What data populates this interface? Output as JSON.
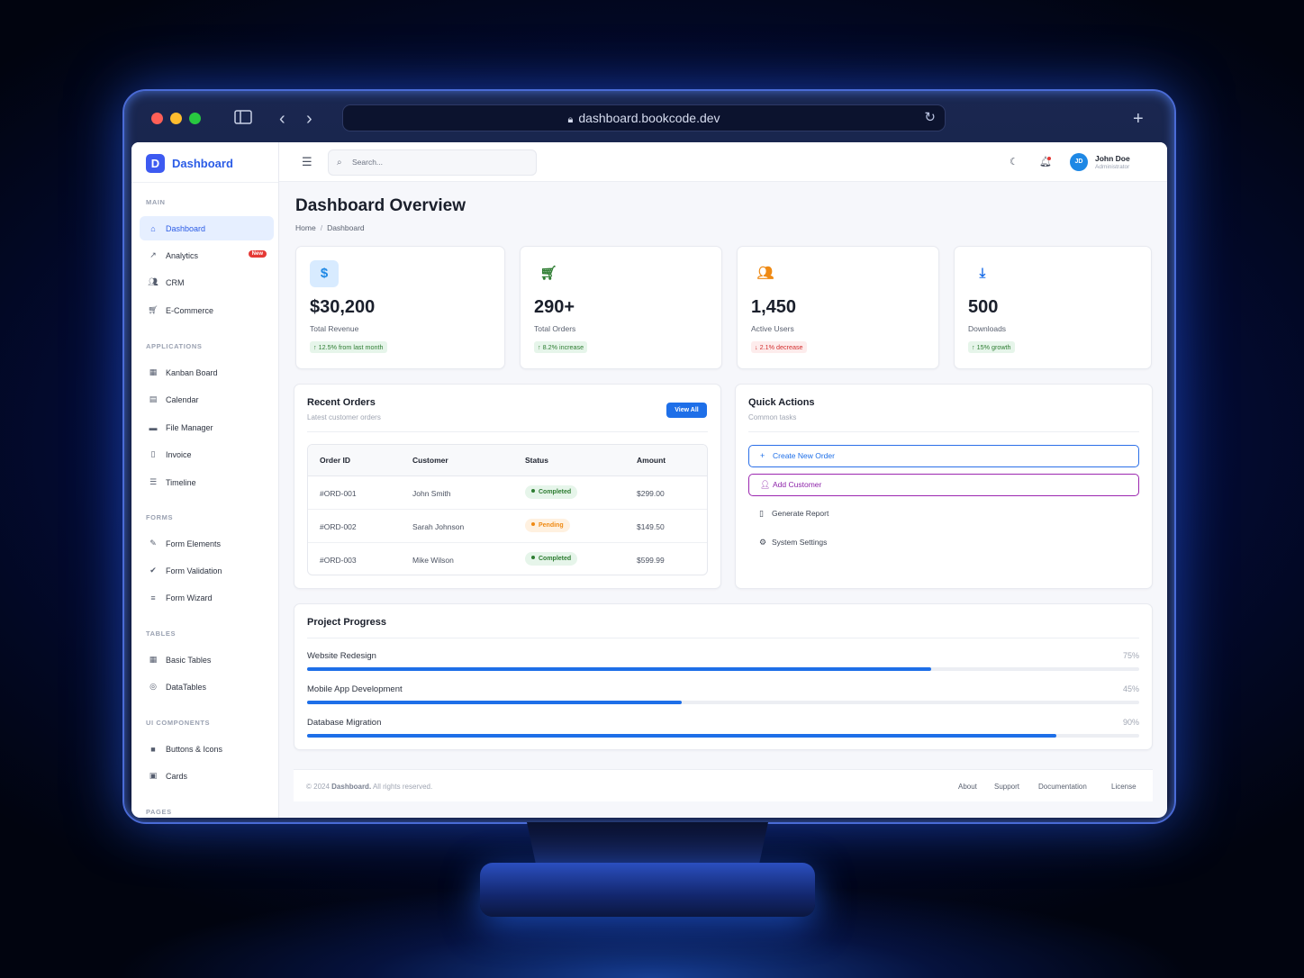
{
  "browser": {
    "url": "dashboard.bookcode.dev"
  },
  "brand": {
    "logo_letter": "D",
    "name": "Dashboard"
  },
  "sidebar": {
    "sections": {
      "main": "MAIN",
      "applications": "APPLICATIONS",
      "forms": "FORMS",
      "tables": "TABLES",
      "ui_components": "UI COMPONENTS",
      "pages": "PAGES"
    },
    "items": [
      {
        "label": "Dashboard",
        "icon": "home-icon",
        "active": true
      },
      {
        "label": "Analytics",
        "icon": "chart-line-icon",
        "badge": "New"
      },
      {
        "label": "CRM",
        "icon": "users-icon"
      },
      {
        "label": "E-Commerce",
        "icon": "cart-icon"
      },
      {
        "label": "Kanban Board",
        "icon": "kanban-icon"
      },
      {
        "label": "Calendar",
        "icon": "calendar-icon"
      },
      {
        "label": "File Manager",
        "icon": "folder-icon"
      },
      {
        "label": "Invoice",
        "icon": "file-icon"
      },
      {
        "label": "Timeline",
        "icon": "list-icon"
      },
      {
        "label": "Form Elements",
        "icon": "edit-icon"
      },
      {
        "label": "Form Validation",
        "icon": "check-circle-icon"
      },
      {
        "label": "Form Wizard",
        "icon": "list-ordered-icon"
      },
      {
        "label": "Basic Tables",
        "icon": "table-icon"
      },
      {
        "label": "DataTables",
        "icon": "database-icon"
      },
      {
        "label": "Buttons & Icons",
        "icon": "square-icon"
      },
      {
        "label": "Cards",
        "icon": "card-icon"
      }
    ]
  },
  "topbar": {
    "search_placeholder": "Search...",
    "user_initials": "JD",
    "user_name": "John Doe",
    "user_role": "Administrator"
  },
  "page": {
    "title": "Dashboard Overview",
    "breadcrumb": [
      "Home",
      "Dashboard"
    ]
  },
  "stats": [
    {
      "icon": "dollar-icon",
      "value": "$30,200",
      "label": "Total Revenue",
      "trend": "12.5% from last month",
      "direction": "up",
      "color": "#1e88e5"
    },
    {
      "icon": "cart-icon",
      "value": "290+",
      "label": "Total Orders",
      "trend": "8.2% increase",
      "direction": "up",
      "color": "#2e7d32"
    },
    {
      "icon": "users-icon",
      "value": "1,450",
      "label": "Active Users",
      "trend": "2.1% decrease",
      "direction": "down",
      "color": "#ef8a14"
    },
    {
      "icon": "download-icon",
      "value": "500",
      "label": "Downloads",
      "trend": "15% growth",
      "direction": "up",
      "color": "#1e6fe8"
    }
  ],
  "orders": {
    "title": "Recent Orders",
    "subtitle": "Latest customer orders",
    "view_all": "View All",
    "columns": [
      "Order ID",
      "Customer",
      "Status",
      "Amount"
    ],
    "rows": [
      {
        "id": "#ORD-001",
        "customer": "John Smith",
        "status": "Completed",
        "amount": "$299.00"
      },
      {
        "id": "#ORD-002",
        "customer": "Sarah Johnson",
        "status": "Pending",
        "amount": "$149.50"
      },
      {
        "id": "#ORD-003",
        "customer": "Mike Wilson",
        "status": "Completed",
        "amount": "$599.99"
      }
    ]
  },
  "quick_actions": {
    "title": "Quick Actions",
    "subtitle": "Common tasks",
    "actions": [
      {
        "label": "Create New Order",
        "icon": "plus-icon"
      },
      {
        "label": "Add Customer",
        "icon": "user-plus-icon"
      },
      {
        "label": "Generate Report",
        "icon": "document-icon"
      },
      {
        "label": "System Settings",
        "icon": "gear-icon"
      }
    ]
  },
  "projects": {
    "title": "Project Progress",
    "items": [
      {
        "name": "Website Redesign",
        "pct_label": "75%",
        "progress": 0.75
      },
      {
        "name": "Mobile App Development",
        "pct_label": "45%",
        "progress": 0.45
      },
      {
        "name": "Database Migration",
        "pct_label": "90%",
        "progress": 0.9
      }
    ]
  },
  "footer": {
    "copyright_prefix": "© 2024",
    "copyright_brand": "Dashboard.",
    "copyright_suffix": "All rights reserved.",
    "links": [
      "About",
      "Support",
      "Documentation",
      "License"
    ]
  }
}
